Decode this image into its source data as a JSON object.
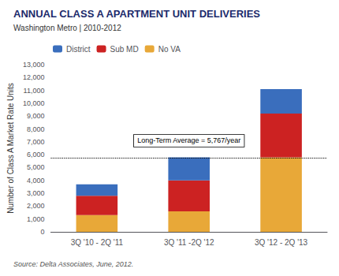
{
  "chart_data": {
    "type": "bar",
    "stacked": true,
    "title": "ANNUAL CLASS A APARTMENT UNIT DELIVERIES",
    "subtitle": "Washington Metro | 2010-2012",
    "source": "Source: Delta Associates, June, 2012.",
    "ylabel": "Number of Class A Market Rate Units",
    "categories": [
      "3Q '10 - 2Q '11",
      "3Q '11 -2Q '12",
      "3Q '12 - 2Q '13"
    ],
    "series": [
      {
        "name": "No VA",
        "color": "#E8A838",
        "values": [
          1300,
          1600,
          5800
        ]
      },
      {
        "name": "Sub MD",
        "color": "#CC2222",
        "values": [
          1500,
          2400,
          3400
        ]
      },
      {
        "name": "District",
        "color": "#3A6EBD",
        "values": [
          900,
          1800,
          1900
        ]
      }
    ],
    "reference_line": {
      "value": 5767,
      "label": "Long-Term Average = 5,767/year",
      "line_style": "dotted"
    },
    "ylim": [
      0,
      13000
    ],
    "yticks": [
      0,
      {
        "value": 1000,
        "label": "1,000"
      },
      {
        "value": 2000,
        "label": "2,000"
      },
      {
        "value": 3000,
        "label": "3,000"
      },
      {
        "value": 4000,
        "label": "4,000"
      },
      {
        "value": 5000,
        "label": "5,000"
      },
      {
        "value": 6000,
        "label": "6,000"
      },
      {
        "value": 7000,
        "label": "7,000"
      },
      {
        "value": 8000,
        "label": "8,000"
      },
      {
        "value": 9000,
        "label": "9,000"
      },
      {
        "value": 10000,
        "label": "10,000"
      },
      {
        "value": 11000,
        "label": "11,000"
      },
      {
        "value": 12000,
        "label": "12,000"
      },
      {
        "value": 13000,
        "label": "13,000"
      }
    ],
    "grid": false,
    "legend": "upper left"
  }
}
